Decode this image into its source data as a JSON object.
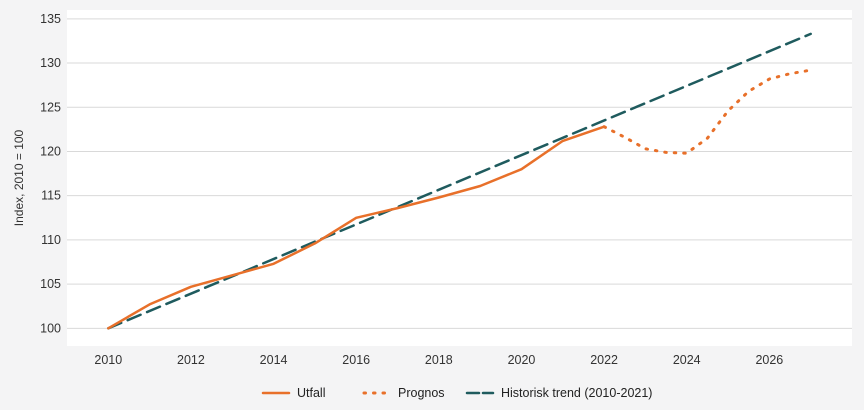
{
  "chart_data": {
    "type": "line",
    "ylabel": "Index, 2010 = 100",
    "xlabel": "",
    "xlim": [
      2009.0,
      2028.0
    ],
    "ylim": [
      98,
      136
    ],
    "x_ticks": [
      2010,
      2012,
      2014,
      2016,
      2018,
      2020,
      2022,
      2024,
      2026
    ],
    "y_ticks": [
      100,
      105,
      110,
      115,
      120,
      125,
      130,
      135
    ],
    "grid": "horizontal",
    "legend_position": "bottom",
    "series": [
      {
        "name": "Utfall",
        "style": "solid",
        "color": "#e8702a",
        "x": [
          2010,
          2011,
          2012,
          2013,
          2014,
          2015,
          2016,
          2017,
          2018,
          2019,
          2020,
          2021,
          2022
        ],
        "y": [
          100.0,
          102.7,
          104.7,
          106.0,
          107.3,
          109.6,
          112.5,
          113.6,
          114.8,
          116.1,
          118.0,
          121.2,
          122.8
        ]
      },
      {
        "name": "Prognos",
        "style": "dotted",
        "color": "#e8702a",
        "x": [
          2022,
          2022.5,
          2023,
          2023.5,
          2024,
          2024.5,
          2025,
          2025.5,
          2026,
          2026.5,
          2027
        ],
        "y": [
          122.8,
          121.6,
          120.3,
          119.9,
          119.8,
          121.5,
          124.6,
          126.8,
          128.2,
          128.8,
          129.2
        ]
      },
      {
        "name": "Historisk trend (2010-2021)",
        "style": "dashed",
        "color": "#1f5b5e",
        "x": [
          2010,
          2027
        ],
        "y": [
          100.0,
          133.3
        ]
      }
    ]
  }
}
